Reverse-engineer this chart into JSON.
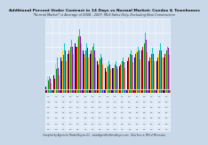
{
  "title": "Additional Percent Under Contract in 14 Days vs Normal Market: Condos & Townhomes",
  "subtitle": "\"Normal Market\" is Average of 2004 - 2007. MLS Sales Only, Excluding New Construction",
  "background_color": "#c8d8e8",
  "plot_bg_color": "#dce8f5",
  "bar_colors": [
    "#00008B",
    "#CC0000",
    "#FFD700",
    "#009900",
    "#00CCCC",
    "#9900CC",
    "#FF8C00"
  ],
  "strip_colors": [
    "#0000CC",
    "#CC0000",
    "#FFCC00",
    "#00AA00",
    "#00CCCC",
    "#9900CC",
    "#FF8C00"
  ],
  "num_groups": 17,
  "num_bars": 7,
  "bar_data": [
    [
      0.3,
      -0.5,
      1.8,
      1.2,
      1.8,
      1.5,
      0.8
    ],
    [
      2.0,
      1.5,
      3.5,
      2.8,
      4.5,
      3.0,
      2.0
    ],
    [
      4.5,
      4.0,
      5.5,
      4.8,
      6.5,
      5.5,
      4.0
    ],
    [
      5.0,
      5.5,
      5.0,
      6.0,
      7.0,
      6.0,
      5.0
    ],
    [
      6.5,
      6.0,
      7.0,
      7.5,
      8.5,
      7.5,
      6.5
    ],
    [
      5.5,
      5.0,
      4.5,
      5.5,
      6.5,
      5.8,
      4.5
    ],
    [
      5.0,
      5.5,
      5.0,
      6.0,
      6.5,
      5.5,
      4.5
    ],
    [
      4.0,
      3.5,
      4.5,
      4.2,
      5.0,
      4.5,
      3.5
    ],
    [
      3.0,
      2.5,
      3.5,
      3.2,
      4.0,
      3.5,
      2.8
    ],
    [
      3.0,
      3.0,
      3.0,
      3.5,
      4.0,
      3.2,
      2.8
    ],
    [
      3.2,
      3.5,
      3.5,
      4.0,
      4.5,
      3.8,
      3.0
    ],
    [
      4.0,
      4.5,
      4.0,
      5.0,
      5.5,
      4.8,
      3.8
    ],
    [
      4.5,
      5.0,
      5.5,
      5.2,
      6.0,
      5.5,
      4.2
    ],
    [
      5.5,
      6.0,
      5.5,
      6.5,
      8.0,
      7.0,
      5.2
    ],
    [
      4.0,
      4.5,
      4.5,
      5.0,
      5.8,
      5.0,
      4.0
    ],
    [
      4.0,
      4.5,
      5.0,
      5.5,
      6.5,
      5.5,
      4.5
    ],
    [
      4.5,
      5.0,
      5.0,
      5.5,
      6.0,
      5.8,
      4.8
    ]
  ],
  "ylim": [
    0,
    10
  ],
  "yticks": [
    0,
    2,
    4,
    6,
    8,
    10
  ],
  "table_rows": 7,
  "footer": "Compiled by Agents for Market Buyers LLC   www.AgentsForHomeBuyers.com   Data Source: MLS of Minnesota",
  "title_fontsize": 3.2,
  "subtitle_fontsize": 2.6,
  "footer_fontsize": 1.8,
  "table_fontsize": 1.5
}
